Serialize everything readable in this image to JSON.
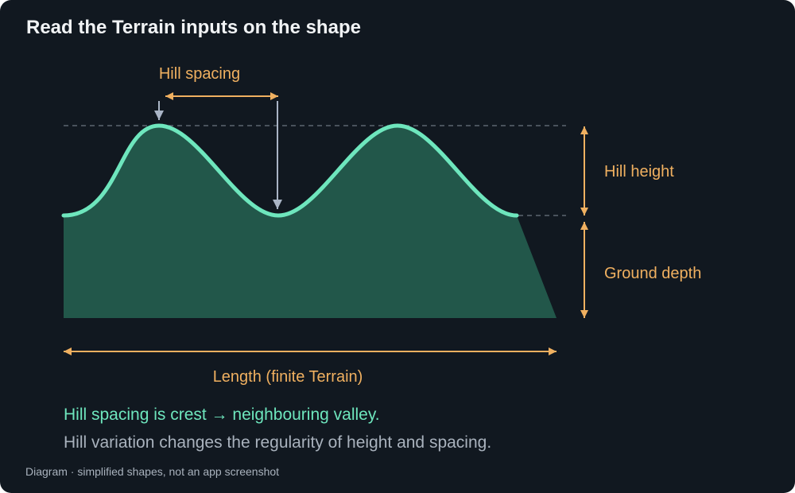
{
  "title": "Read the Terrain inputs on the shape",
  "labels": {
    "hill_spacing": "Hill spacing",
    "hill_height": "Hill height",
    "ground_depth": "Ground depth",
    "length": "Length (finite Terrain)"
  },
  "notes": {
    "primary": "Hill spacing is crest → neighbouring valley.",
    "secondary": "Hill variation changes the regularity of height and spacing."
  },
  "caption": "Diagram · simplified shapes, not an app screenshot",
  "colors": {
    "background": "#111820",
    "terrain_fill": "#22574a",
    "terrain_outline": "#6ee6bd",
    "dimension_orange": "#f0b060",
    "pointer_gray": "#aab5c6",
    "guide_dashed": "#5c6570"
  }
}
